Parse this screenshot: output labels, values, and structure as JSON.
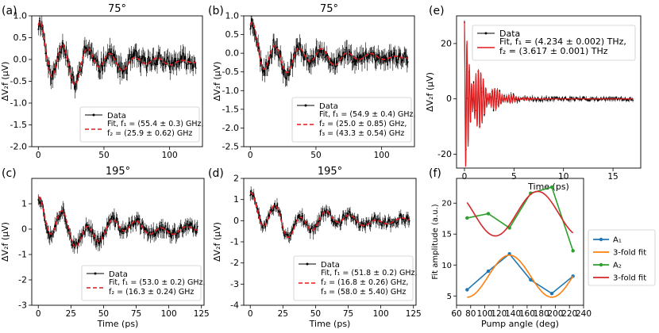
{
  "figure": {
    "description_free": true
  },
  "chart_data": [
    {
      "id": "a",
      "type": "line",
      "panel_label": "(a)",
      "title": "75°",
      "ylabel": "ΔV₂f (μV)",
      "xlabel": "",
      "xlim": [
        -5,
        125
      ],
      "ylim": [
        -2.0,
        1.0
      ],
      "xticks": [
        0,
        50,
        100
      ],
      "yticks": [
        -2.0,
        -1.5,
        -1.0,
        -0.5,
        0.0,
        0.5,
        1.0
      ],
      "ytick_decimals": 1,
      "legend_position": "lower-right",
      "data_series": {
        "name": "Data",
        "x_range": [
          0,
          120
        ],
        "noise": 0.18,
        "seed": 11
      },
      "fit": {
        "name": "Fit",
        "offset": -0.05,
        "decay": 38,
        "components": [
          {
            "f_GHz": 55.4,
            "amp": 0.75,
            "phase": 1.2
          },
          {
            "f_GHz": 25.9,
            "amp": 0.35,
            "phase": 0.4
          }
        ]
      },
      "legend": [
        "Data",
        "Fit, f₁ = (55.4 ± 0.3) GHz,",
        "f₂ = (25.9 ± 0.62) GHz"
      ]
    },
    {
      "id": "b",
      "type": "line",
      "panel_label": "(b)",
      "title": "75°",
      "ylabel": "ΔV₂f (μV)",
      "xlabel": "",
      "xlim": [
        -5,
        125
      ],
      "ylim": [
        -2.5,
        1.0
      ],
      "xticks": [
        0,
        50,
        100
      ],
      "yticks": [
        -2.5,
        -2.0,
        -1.5,
        -1.0,
        -0.5,
        0.0,
        0.5,
        1.0
      ],
      "ytick_decimals": 1,
      "legend_position": "lower-right",
      "data_series": {
        "name": "Data",
        "x_range": [
          0,
          120
        ],
        "noise": 0.2,
        "seed": 23
      },
      "fit": {
        "name": "Fit",
        "offset": -0.1,
        "decay": 40,
        "components": [
          {
            "f_GHz": 54.9,
            "amp": 0.7,
            "phase": 1.3
          },
          {
            "f_GHz": 25.0,
            "amp": 0.3,
            "phase": 0.5
          },
          {
            "f_GHz": 43.3,
            "amp": 0.15,
            "phase": 0.2
          }
        ]
      },
      "legend": [
        "Data",
        "Fit, f₁ = (54.9 ± 0.4) GHz,",
        "f₂ = (25.0 ± 0.85) GHz,",
        "f₃ = (43.3 ± 0.54) GHz"
      ]
    },
    {
      "id": "c",
      "type": "line",
      "panel_label": "(c)",
      "title": "195°",
      "ylabel": "ΔV₂f (μV)",
      "xlabel": "Time (ps)",
      "xlim": [
        -5,
        127
      ],
      "ylim": [
        -3,
        2
      ],
      "xticks": [
        0,
        25,
        50,
        75,
        100,
        125
      ],
      "yticks": [
        -3,
        -2,
        -1,
        0,
        1
      ],
      "ytick_decimals": 0,
      "legend_position": "lower-right",
      "data_series": {
        "name": "Data",
        "x_range": [
          0,
          122
        ],
        "noise": 0.22,
        "seed": 37
      },
      "fit": {
        "name": "Fit",
        "offset": 0.0,
        "decay": 55,
        "components": [
          {
            "f_GHz": 53.0,
            "amp": 0.8,
            "phase": 1.57
          },
          {
            "f_GHz": 16.3,
            "amp": 0.6,
            "phase": 0.9
          }
        ]
      },
      "legend": [
        "Data",
        "Fit, f₁ = (53.0 ± 0.2) GHz,",
        "f₂ = (16.3 ± 0.24) GHz"
      ]
    },
    {
      "id": "d",
      "type": "line",
      "panel_label": "(d)",
      "title": "195°",
      "ylabel": "ΔV₂f (μV)",
      "xlabel": "Time (ps)",
      "xlim": [
        -5,
        127
      ],
      "ylim": [
        -4,
        2
      ],
      "xticks": [
        0,
        25,
        50,
        75,
        100,
        125
      ],
      "yticks": [
        -4,
        -3,
        -2,
        -1,
        0,
        1,
        2
      ],
      "ytick_decimals": 0,
      "legend_position": "lower-right",
      "data_series": {
        "name": "Data",
        "x_range": [
          0,
          122
        ],
        "noise": 0.22,
        "seed": 51
      },
      "fit": {
        "name": "Fit",
        "offset": 0.0,
        "decay": 55,
        "components": [
          {
            "f_GHz": 51.8,
            "amp": 0.8,
            "phase": 1.57
          },
          {
            "f_GHz": 16.8,
            "amp": 0.6,
            "phase": 0.9
          },
          {
            "f_GHz": 58.0,
            "amp": 0.1,
            "phase": 0.3
          }
        ]
      },
      "legend": [
        "Data",
        "Fit, f₁ = (51.8 ± 0.2) GHz,",
        "f₂ = (16.8 ± 0.26) GHz,",
        "f₃ = (58.0 ± 5.40) GHz"
      ]
    },
    {
      "id": "e",
      "type": "line",
      "panel_label": "(e)",
      "title": "",
      "ylabel": "ΔV₂f (μV)",
      "xlabel": "Time (ps)",
      "xlim": [
        -0.8,
        17.8
      ],
      "ylim": [
        -25,
        30
      ],
      "xticks": [
        0,
        5,
        10,
        15
      ],
      "yticks": [
        -20,
        0,
        20
      ],
      "ytick_decimals": 0,
      "legend_position": "top-right",
      "data_series": {
        "name": "Data",
        "x_range": [
          0,
          17
        ],
        "noise": 0.6,
        "seed": 7
      },
      "fit": {
        "name": "Fit",
        "offset": 0.0,
        "decay": 1.6,
        "fit_x_range": [
          0,
          17
        ],
        "components": [
          {
            "f_THz": 4.234,
            "amp": 18,
            "phase": 1.57
          },
          {
            "f_THz": 3.617,
            "amp": 10,
            "phase": 1.57
          }
        ]
      },
      "legend": [
        "Data",
        "Fit, f₁ = (4.234 ± 0.002) THz,",
        "f₂ = (3.617 ± 0.001) THz"
      ]
    },
    {
      "id": "f",
      "type": "line",
      "panel_label": "(f)",
      "title": "",
      "ylabel": "Fit amplitude (a.u.)",
      "xlabel": "Pump angle (deg)",
      "xlim": [
        60,
        240
      ],
      "ylim": [
        3.5,
        24
      ],
      "xticks": [
        60,
        80,
        100,
        120,
        140,
        160,
        180,
        200,
        220,
        240
      ],
      "yticks": [
        5,
        10,
        15,
        20
      ],
      "ytick_decimals": 0,
      "legend_position": "outside-right",
      "series": [
        {
          "name": "A₁",
          "color": "#1f77b4",
          "marker": true,
          "x": [
            75,
            105,
            135,
            165,
            195,
            225
          ],
          "y": [
            6.0,
            9.0,
            11.8,
            7.6,
            5.4,
            8.2
          ]
        },
        {
          "name": "3-fold fit",
          "color": "#ff7f0e",
          "marker": false,
          "model": "threefold",
          "mean": 8.2,
          "amp": 3.4,
          "phase_deg": 135,
          "x_range": [
            75,
            225
          ]
        },
        {
          "name": "A₂",
          "color": "#2ca02c",
          "marker": true,
          "x": [
            75,
            105,
            135,
            165,
            195,
            225
          ],
          "y": [
            17.6,
            18.3,
            16.0,
            21.6,
            22.6,
            12.3
          ]
        },
        {
          "name": "3-fold fit",
          "color": "#d62728",
          "marker": false,
          "model": "threefold",
          "mean": 18.3,
          "amp": 3.6,
          "phase_deg": 175,
          "x_range": [
            75,
            225
          ]
        }
      ]
    }
  ]
}
